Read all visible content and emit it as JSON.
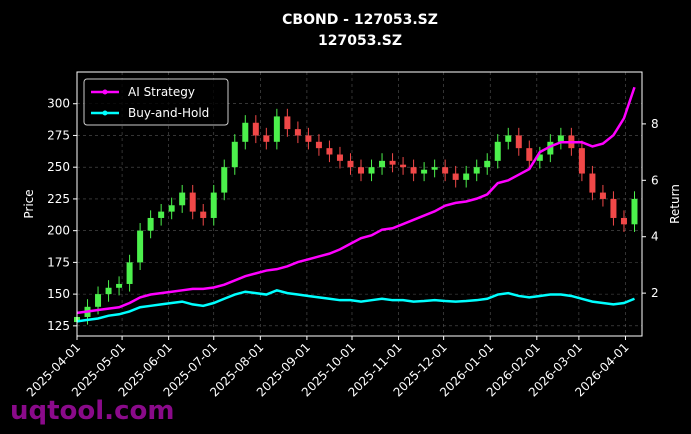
{
  "chart_data": {
    "type": "candlestick",
    "title": "CBOND - 127053.SZ",
    "subtitle": "127053.SZ",
    "ylabel": "Price",
    "y2label": "Return",
    "watermark": "uqtool.com",
    "grid": true,
    "legend": "upper left",
    "up_color": "#4cf04c",
    "down_color": "#f04848",
    "x": [
      "2025-04-01",
      "2025-04-08",
      "2025-04-15",
      "2025-04-22",
      "2025-04-29",
      "2025-05-06",
      "2025-05-13",
      "2025-05-20",
      "2025-05-27",
      "2025-06-03",
      "2025-06-10",
      "2025-06-17",
      "2025-06-24",
      "2025-07-01",
      "2025-07-08",
      "2025-07-15",
      "2025-07-22",
      "2025-07-29",
      "2025-08-05",
      "2025-08-12",
      "2025-08-19",
      "2025-08-26",
      "2025-09-02",
      "2025-09-09",
      "2025-09-16",
      "2025-09-23",
      "2025-09-30",
      "2025-10-07",
      "2025-10-14",
      "2025-10-21",
      "2025-10-28",
      "2025-11-04",
      "2025-11-11",
      "2025-11-18",
      "2025-11-25",
      "2025-12-02",
      "2025-12-09",
      "2025-12-16",
      "2025-12-23",
      "2025-12-30",
      "2026-01-06",
      "2026-01-13",
      "2026-01-20",
      "2026-01-27",
      "2026-02-03",
      "2026-02-10",
      "2026-02-17",
      "2026-02-24",
      "2026-03-03",
      "2026-03-10",
      "2026-03-17",
      "2026-03-24",
      "2026-03-31",
      "2026-04-07"
    ],
    "open": [
      128,
      132,
      140,
      150,
      155,
      158,
      175,
      200,
      210,
      215,
      220,
      230,
      215,
      210,
      230,
      250,
      270,
      285,
      275,
      270,
      290,
      280,
      275,
      270,
      265,
      260,
      255,
      250,
      245,
      250,
      255,
      252,
      250,
      245,
      248,
      250,
      245,
      240,
      245,
      250,
      255,
      270,
      275,
      265,
      255,
      260,
      270,
      275,
      265,
      245,
      230,
      225,
      210,
      205
    ],
    "high": [
      138,
      146,
      156,
      161,
      164,
      181,
      206,
      216,
      221,
      226,
      236,
      236,
      221,
      236,
      256,
      276,
      291,
      291,
      281,
      296,
      296,
      286,
      281,
      276,
      271,
      266,
      261,
      256,
      256,
      261,
      261,
      258,
      256,
      254,
      256,
      256,
      251,
      251,
      256,
      261,
      276,
      281,
      281,
      271,
      266,
      276,
      281,
      281,
      271,
      251,
      236,
      231,
      216,
      231
    ],
    "low": [
      122,
      126,
      134,
      144,
      149,
      152,
      169,
      194,
      204,
      209,
      214,
      209,
      204,
      204,
      224,
      244,
      264,
      269,
      264,
      264,
      274,
      269,
      264,
      259,
      254,
      249,
      244,
      239,
      239,
      244,
      246,
      244,
      239,
      239,
      242,
      239,
      234,
      234,
      239,
      244,
      249,
      264,
      259,
      249,
      249,
      254,
      264,
      259,
      239,
      224,
      219,
      204,
      199,
      199
    ],
    "close": [
      132,
      140,
      150,
      155,
      158,
      175,
      200,
      210,
      215,
      220,
      230,
      215,
      210,
      230,
      250,
      270,
      285,
      275,
      270,
      290,
      280,
      275,
      270,
      265,
      260,
      255,
      250,
      245,
      250,
      255,
      252,
      250,
      245,
      248,
      250,
      245,
      240,
      245,
      250,
      255,
      270,
      275,
      265,
      255,
      260,
      270,
      275,
      265,
      245,
      230,
      225,
      210,
      205,
      225
    ],
    "series": [
      {
        "name": "AI Strategy",
        "color": "#ff00ff",
        "axis": "y2",
        "values": [
          1.3,
          1.35,
          1.4,
          1.45,
          1.5,
          1.65,
          1.85,
          1.95,
          2.0,
          2.05,
          2.1,
          2.15,
          2.15,
          2.2,
          2.3,
          2.45,
          2.6,
          2.7,
          2.8,
          2.85,
          2.95,
          3.1,
          3.2,
          3.3,
          3.4,
          3.55,
          3.75,
          3.95,
          4.05,
          4.25,
          4.3,
          4.45,
          4.6,
          4.75,
          4.9,
          5.1,
          5.2,
          5.25,
          5.35,
          5.5,
          5.9,
          6.0,
          6.2,
          6.4,
          7.0,
          7.2,
          7.35,
          7.35,
          7.35,
          7.2,
          7.3,
          7.6,
          8.2,
          9.3
        ]
      },
      {
        "name": "Buy-and-Hold",
        "color": "#00ffff",
        "axis": "y2",
        "values": [
          1.0,
          1.05,
          1.1,
          1.2,
          1.25,
          1.35,
          1.5,
          1.55,
          1.6,
          1.65,
          1.7,
          1.6,
          1.55,
          1.65,
          1.8,
          1.95,
          2.05,
          2.0,
          1.95,
          2.1,
          2.0,
          1.95,
          1.9,
          1.85,
          1.8,
          1.75,
          1.75,
          1.7,
          1.75,
          1.8,
          1.75,
          1.75,
          1.7,
          1.72,
          1.75,
          1.72,
          1.7,
          1.72,
          1.75,
          1.8,
          1.95,
          2.0,
          1.9,
          1.85,
          1.9,
          1.95,
          1.95,
          1.9,
          1.8,
          1.7,
          1.65,
          1.6,
          1.65,
          1.8
        ]
      }
    ],
    "xlim": [
      "2025-04-01",
      "2026-04-12"
    ],
    "xticks": [
      "2025-04-01",
      "2025-05-01",
      "2025-06-01",
      "2025-07-01",
      "2025-08-01",
      "2025-09-01",
      "2025-10-01",
      "2025-11-01",
      "2025-12-01",
      "2026-01-01",
      "2026-02-01",
      "2026-03-01",
      "2026-04-01"
    ],
    "ylim": [
      117,
      325
    ],
    "yticks": [
      125,
      150,
      175,
      200,
      225,
      250,
      275,
      300
    ],
    "y2lim": [
      0.48,
      9.84
    ],
    "y2ticks": [
      2,
      4,
      6,
      8
    ]
  }
}
